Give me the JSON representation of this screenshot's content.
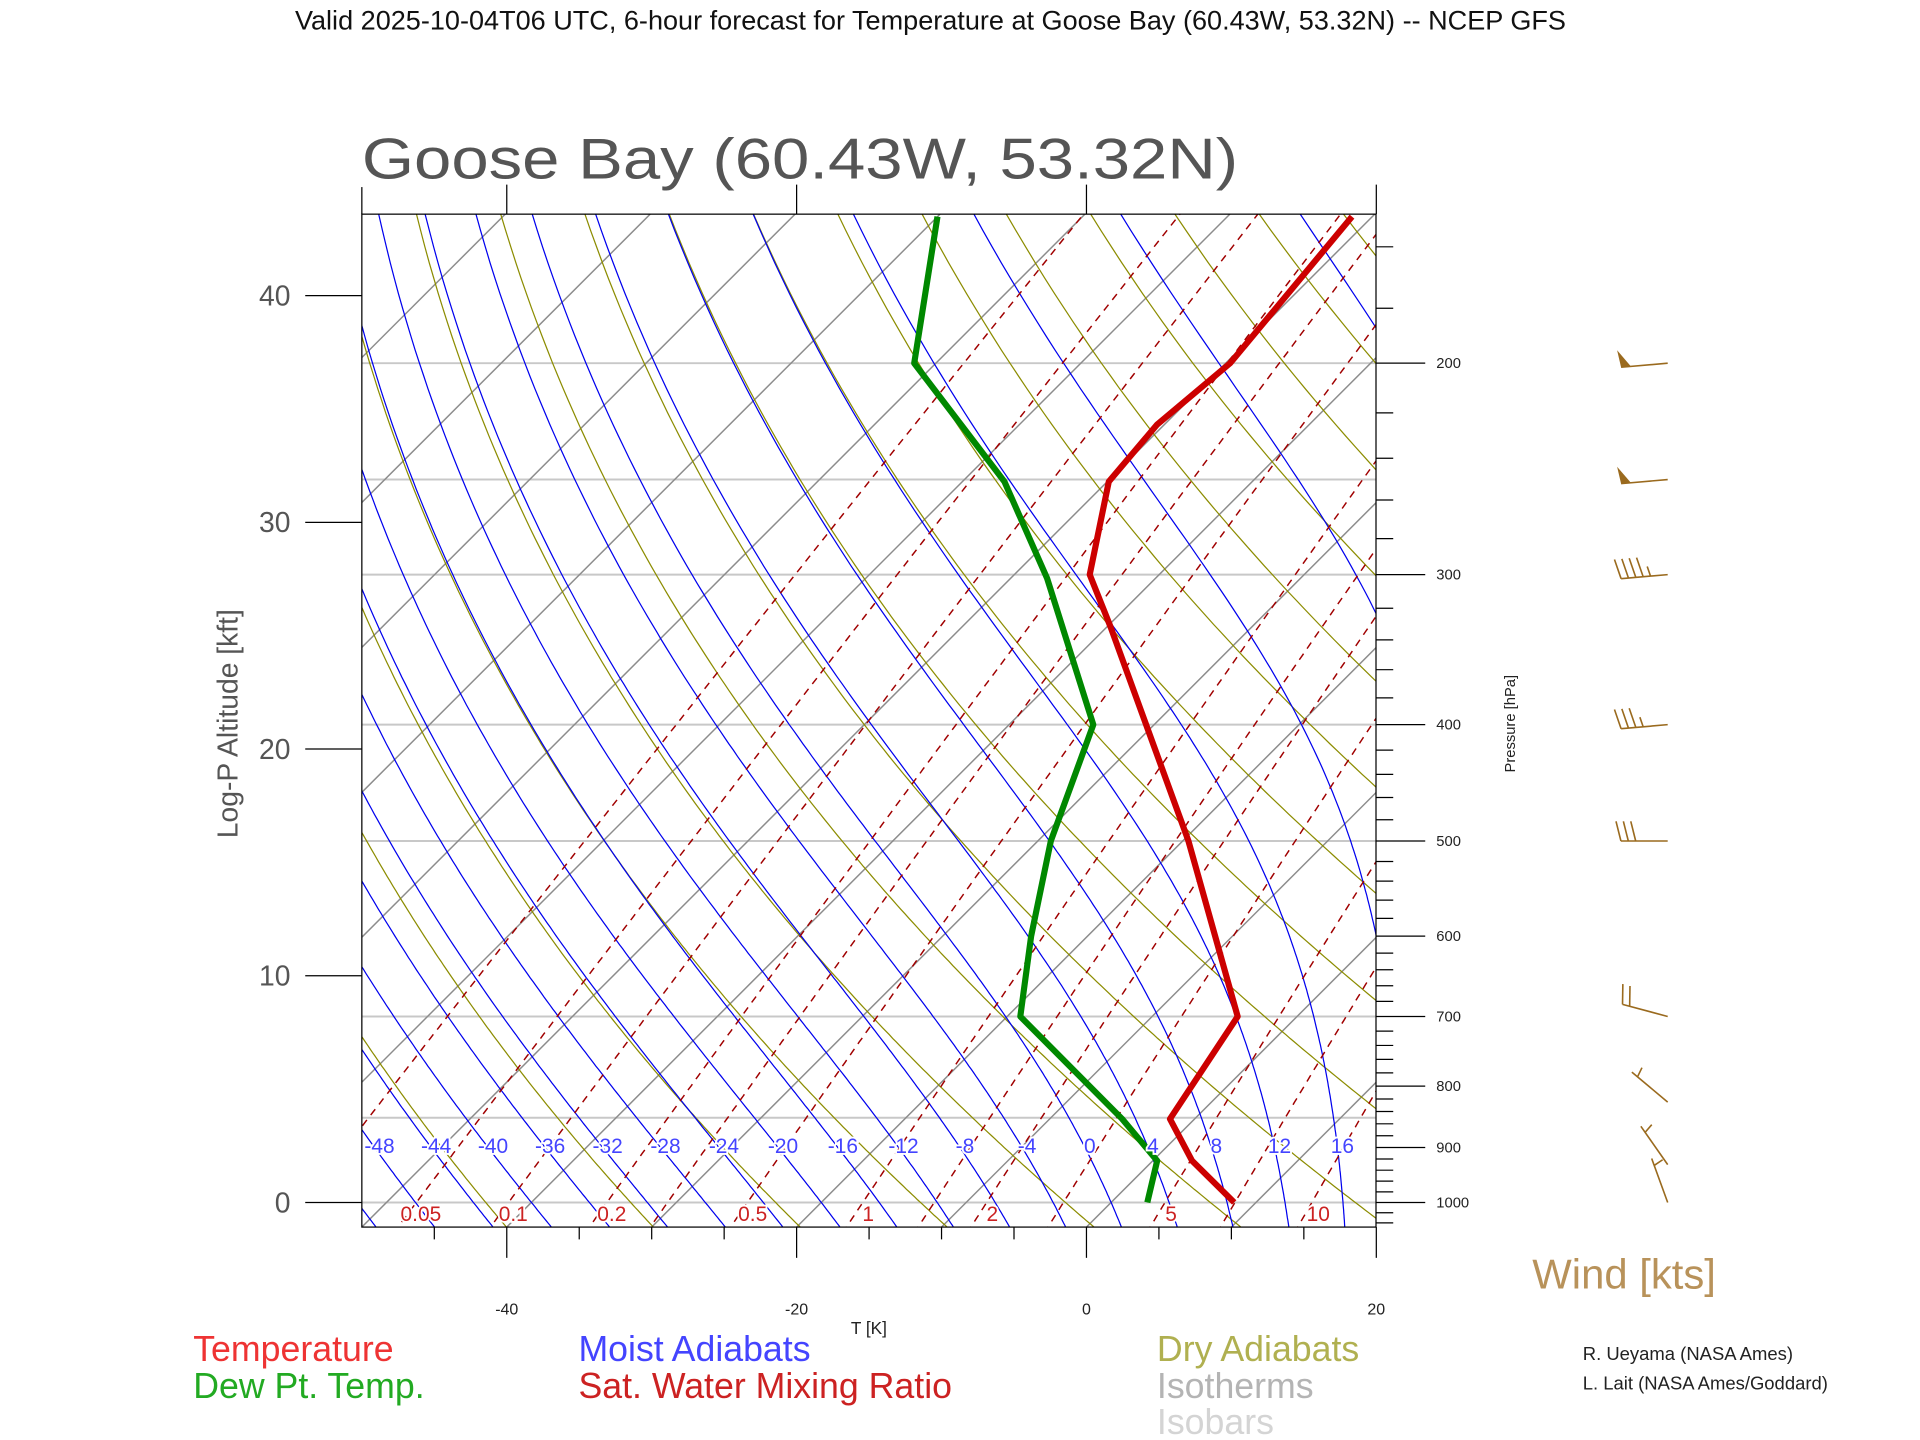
{
  "header": {
    "title": "Valid 2025-10-04T06 UTC, 6-hour forecast for Temperature at Goose Bay (60.43W, 53.32N) -- NCEP GFS"
  },
  "chart_data": {
    "type": "line",
    "subtype": "skew-T log-P diagram",
    "title": "Goose Bay (60.43W, 53.32N)",
    "xlabel": "T [K]",
    "ylabel_left": "Log-P Altitude [kft]",
    "ylabel_right": "Pressure [hPa]",
    "xlim": [
      -50,
      20
    ],
    "plim": [
      1048,
      150
    ],
    "x_ticks": [
      "-40",
      "-20",
      "0",
      "20"
    ],
    "x_tick_values": [
      -40,
      -20,
      0,
      20
    ],
    "altitude_ticks": [
      "0",
      "10",
      "20",
      "30",
      "40"
    ],
    "altitude_tick_values": [
      0,
      10,
      20,
      30,
      40
    ],
    "pressure_ticks": [
      "200",
      "300",
      "400",
      "500",
      "600",
      "700",
      "800",
      "900",
      "1000"
    ],
    "pressure_tick_values": [
      200,
      300,
      400,
      500,
      600,
      700,
      800,
      900,
      1000
    ],
    "series": [
      {
        "name": "Temperature",
        "color": "#cc0000",
        "p": [
          1000,
          923,
          852,
          700,
          600,
          500,
          332,
          300,
          251,
          225,
          200,
          151
        ],
        "t": [
          8.5,
          2.7,
          -1.7,
          -4.1,
          -11.2,
          -19.6,
          -39.7,
          -44.8,
          -49.9,
          -50.5,
          -49.7,
          -51.4
        ]
      },
      {
        "name": "Dew Pt. Temp.",
        "color": "#008800",
        "p": [
          1000,
          923,
          852,
          700,
          600,
          500,
          400,
          302,
          251,
          200,
          151
        ],
        "t": [
          2.5,
          0.3,
          -5.0,
          -19.1,
          -23.9,
          -29.1,
          -34.2,
          -47.5,
          -57.1,
          -71.5,
          -80.0
        ]
      }
    ],
    "isobars_hpa": [
      1000,
      850,
      700,
      500,
      400,
      300,
      250,
      200
    ],
    "isotherm_step_c": 10,
    "dry_adiabat_theta_k": [
      230,
      240,
      250,
      260,
      270,
      280,
      290,
      300,
      310,
      320,
      330,
      340,
      350,
      360,
      370,
      380,
      390,
      400,
      410,
      420,
      430,
      440,
      450,
      460,
      470
    ],
    "moist_adiabat_t1000_c": [
      -52,
      -48,
      -44,
      -40,
      -36,
      -32,
      -28,
      -24,
      -20,
      -16,
      -12,
      -8,
      -4,
      0,
      4,
      8,
      12,
      16,
      20,
      24,
      28,
      32
    ],
    "moist_adiabat_labels": [
      "-48",
      "-44",
      "-40",
      "-36",
      "-32",
      "-28",
      "-24",
      "-20",
      "-16",
      "-12",
      "-8",
      "-4",
      "0",
      "4",
      "8",
      "12",
      "16"
    ],
    "moist_adiabat_label_values": [
      -48,
      -44,
      -40,
      -36,
      -32,
      -28,
      -24,
      -20,
      -16,
      -12,
      -8,
      -4,
      0,
      4,
      8,
      12,
      16
    ],
    "mixing_ratio_gkg": [
      0.02,
      0.05,
      0.1,
      0.2,
      0.3,
      0.5,
      1,
      1.5,
      2,
      3,
      5,
      7,
      10,
      15,
      20
    ],
    "mixing_ratio_labels": [
      "0.05",
      "0.1",
      "0.2",
      "0.5",
      "1",
      "2",
      "5",
      "10"
    ],
    "mixing_ratio_label_values": [
      0.05,
      0.1,
      0.2,
      0.5,
      1,
      2,
      5,
      10
    ],
    "wind_barbs": [
      {
        "p": 200,
        "speed_kt": 50,
        "dir_deg": 265
      },
      {
        "p": 250,
        "speed_kt": 50,
        "dir_deg": 265
      },
      {
        "p": 300,
        "speed_kt": 45,
        "dir_deg": 265
      },
      {
        "p": 400,
        "speed_kt": 35,
        "dir_deg": 265
      },
      {
        "p": 500,
        "speed_kt": 30,
        "dir_deg": 270
      },
      {
        "p": 700,
        "speed_kt": 20,
        "dir_deg": 285
      },
      {
        "p": 825,
        "speed_kt": 5,
        "dir_deg": 310
      },
      {
        "p": 930,
        "speed_kt": 5,
        "dir_deg": 325
      },
      {
        "p": 1000,
        "speed_kt": 5,
        "dir_deg": 340
      }
    ],
    "legend": {
      "temperature": "Temperature",
      "dewpoint": "Dew Pt. Temp.",
      "moist": "Moist Adiabats",
      "mixing": "Sat. Water Mixing Ratio",
      "dry": "Dry Adiabats",
      "isotherms": "Isotherms",
      "isobars": "Isobars",
      "wind": "Wind [kts]"
    },
    "colors": {
      "temperature": "#cc0000",
      "dewpoint": "#008800",
      "moist": "#0000ee",
      "moist_label": "#4444ff",
      "mixing": "#a00000",
      "mixing_label": "#cc2222",
      "dry": "#8c8c00",
      "dry_label": "#b0b050",
      "isotherm": "#8c8c8c",
      "isotherm_label": "#b4b4b4",
      "isobar": "#c8c8c8",
      "isobar_label": "#d4d4d4",
      "wind": "#9a6a1e",
      "wind_label": "#b8925a"
    }
  },
  "credits": [
    "R. Ueyama (NASA Ames)",
    "L. Lait (NASA Ames/Goddard)"
  ]
}
